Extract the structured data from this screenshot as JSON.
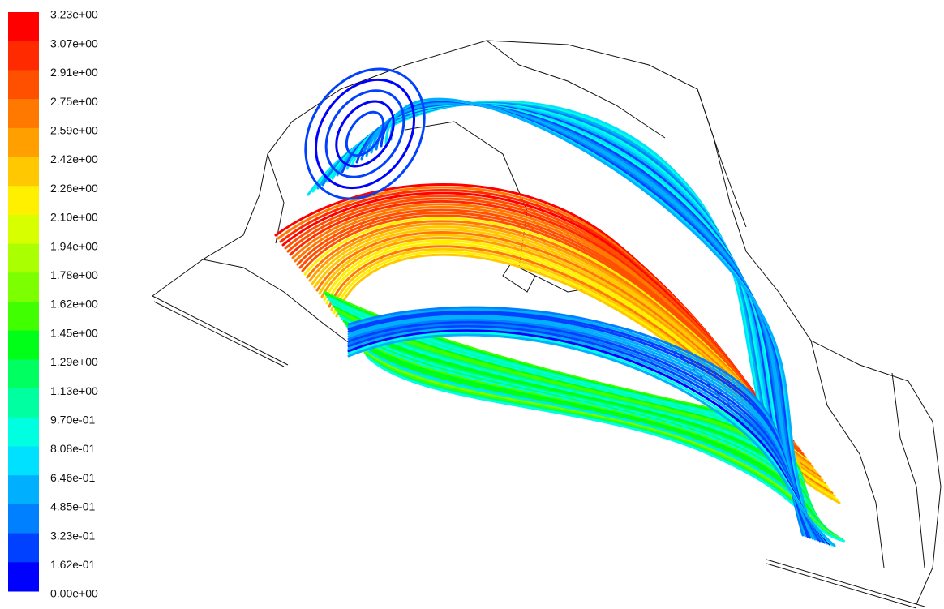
{
  "legend": {
    "labels": [
      "3.23e+00",
      "3.07e+00",
      "2.91e+00",
      "2.75e+00",
      "2.59e+00",
      "2.42e+00",
      "2.26e+00",
      "2.10e+00",
      "1.94e+00",
      "1.78e+00",
      "1.62e+00",
      "1.45e+00",
      "1.29e+00",
      "1.13e+00",
      "9.70e-01",
      "8.08e-01",
      "6.46e-01",
      "4.85e-01",
      "3.23e-01",
      "1.62e-01",
      "0.00e+00"
    ],
    "colors": [
      "#ff0000",
      "#ff2a00",
      "#ff5000",
      "#ff7800",
      "#ffa000",
      "#ffc800",
      "#fff000",
      "#d8ff00",
      "#aaff00",
      "#7cff00",
      "#40ff00",
      "#00ff18",
      "#00ff60",
      "#00ffa0",
      "#00ffe0",
      "#00e0ff",
      "#00b0ff",
      "#0080ff",
      "#0040ff",
      "#0000ff"
    ]
  }
}
